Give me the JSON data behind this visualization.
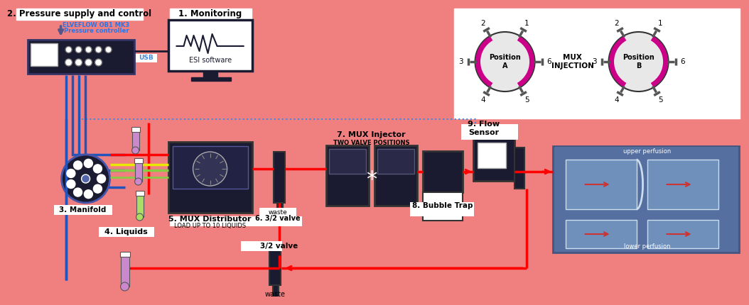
{
  "bg_color": "#F08080",
  "fig_width": 10.24,
  "fig_height": 4.08,
  "labels": {
    "pressure": "2. Pressure supply and control",
    "monitoring": "1. Monitoring",
    "manifold": "3. Manifold",
    "liquids": "4. Liquids",
    "mux_dist": "5. MUX Distributor",
    "mux_dist_sub": "LOAD UP TO 10 LIQUIDS",
    "valve6_waste": "waste",
    "valve6": "6. 3/2 valve",
    "valve_32": "3/2 valve",
    "waste": "waste",
    "mux_inj": "7. MUX Injector",
    "mux_inj_sub": "TWO VALVE POSITIONS",
    "bubble": "8. Bubble Trap",
    "flow": "9. Flow\nSensor",
    "mux_injection": "MUX\nINJECTION",
    "pos_a": "Position\nA",
    "pos_b": "Position\nB",
    "elveflow": "ELVEFLOW OB1 MK3",
    "elveflow2": "Pressure controller",
    "esi": "ESI software",
    "usb": "USB",
    "upper_perf": "upper perfusion",
    "lower_perf": "lower perfusion"
  },
  "colors": {
    "red": "#FF0000",
    "blue": "#2255BB",
    "blue_dotted": "#4488DD",
    "yellow": "#E8E800",
    "green": "#88DD44",
    "dark": "#1a1a30",
    "white": "#FFFFFF",
    "magenta": "#CC0088",
    "label_blue": "#2277EE",
    "chip_blue": "#5570A0",
    "manifold_dark": "#1a1a3e"
  }
}
